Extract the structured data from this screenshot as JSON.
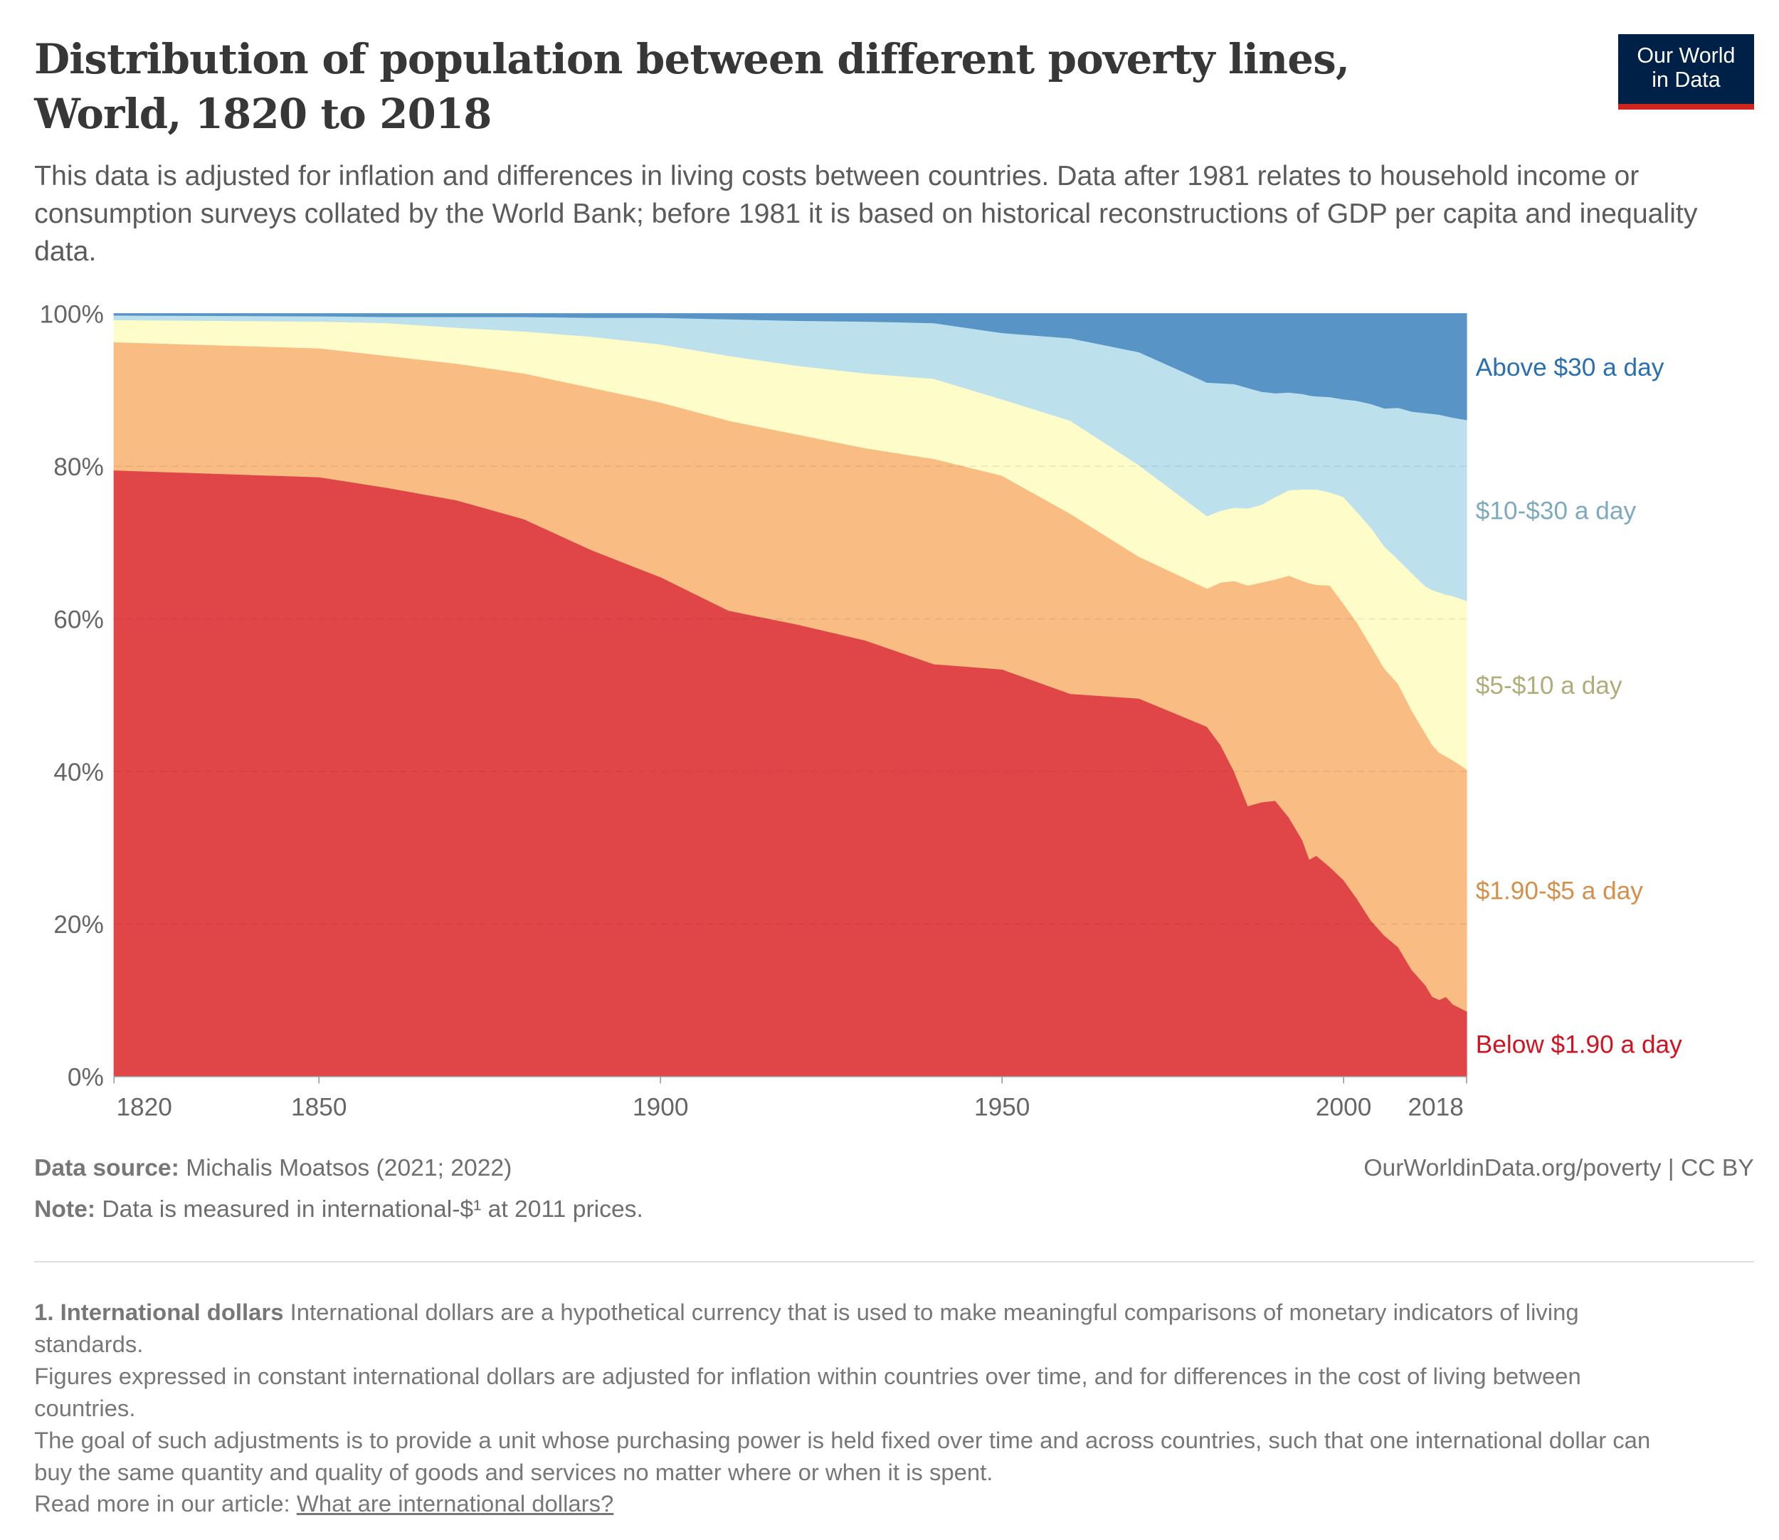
{
  "header": {
    "title": "Distribution of population between different poverty lines, World, 1820 to 2018",
    "subtitle": "This data is adjusted for inflation and differences in living costs between countries. Data after 1981 relates to household income or consumption surveys collated by the World Bank; before 1981 it is based on historical reconstructions of GDP per capita and inequality data.",
    "logo_line1": "Our World",
    "logo_line2": "in Data"
  },
  "chart_data": {
    "type": "area",
    "stacked": true,
    "title": "Distribution of population between different poverty lines, World, 1820 to 2018",
    "xlim": [
      1820,
      2018
    ],
    "ylim": [
      0,
      100
    ],
    "y_unit": "%",
    "grid": "horizontal dashed",
    "legend_placement": "right (inline labels)",
    "x_ticks": [
      "1820",
      "1850",
      "1900",
      "1950",
      "2000",
      "2018"
    ],
    "y_ticks": [
      "0%",
      "20%",
      "40%",
      "60%",
      "80%",
      "100%"
    ],
    "x": [
      1820,
      1850,
      1860,
      1870,
      1880,
      1890,
      1900,
      1910,
      1920,
      1930,
      1940,
      1950,
      1960,
      1970,
      1980,
      1982,
      1984,
      1986,
      1988,
      1990,
      1992,
      1994,
      1995,
      1996,
      1998,
      2000,
      2002,
      2004,
      2006,
      2008,
      2010,
      2012,
      2013,
      2014,
      2015,
      2016,
      2018
    ],
    "series": [
      {
        "name": "Below $1.90 a day",
        "color": "#e04647",
        "label_color": "#d6111f",
        "values": [
          79.5,
          78.6,
          77.2,
          75.6,
          73.1,
          69.0,
          65.5,
          61.1,
          59.3,
          57.2,
          54.1,
          53.4,
          50.2,
          49.6,
          45.9,
          43.5,
          40.0,
          35.5,
          36.0,
          36.2,
          34.0,
          31.0,
          28.5,
          29.0,
          27.5,
          25.8,
          23.3,
          20.5,
          18.5,
          17.0,
          14.0,
          12.0,
          10.5,
          10.1,
          10.5,
          9.5,
          8.6
        ]
      },
      {
        "name": "$1.90-$5 a day",
        "color": "#f9bd83",
        "label_color": "#d4904a",
        "values": [
          16.8,
          16.9,
          17.3,
          17.9,
          19.1,
          21.3,
          22.9,
          24.9,
          24.9,
          25.2,
          26.9,
          25.4,
          23.6,
          18.6,
          18.1,
          21.3,
          25.0,
          28.9,
          28.8,
          29.0,
          31.7,
          34.0,
          36.2,
          35.5,
          36.9,
          36.2,
          36.2,
          36.0,
          35.0,
          34.5,
          34.0,
          33.0,
          33.0,
          32.4,
          31.5,
          32.0,
          31.7
        ]
      },
      {
        "name": "$5-$10 a day",
        "color": "#fefdca",
        "label_color": "#b0ad7a",
        "values": [
          2.9,
          3.5,
          4.3,
          4.7,
          5.5,
          6.7,
          7.6,
          8.5,
          9.0,
          9.8,
          10.5,
          10.0,
          12.2,
          12.0,
          9.5,
          9.4,
          9.6,
          10.1,
          10.2,
          10.8,
          11.2,
          12.0,
          12.3,
          12.5,
          12.2,
          14.0,
          14.5,
          15.5,
          16.0,
          16.3,
          18.0,
          19.3,
          20.3,
          21.0,
          21.2,
          21.5,
          22.1
        ]
      },
      {
        "name": "$10-$30 a day",
        "color": "#bde1ec",
        "label_color": "#7eaabf",
        "values": [
          0.6,
          0.7,
          0.8,
          1.4,
          1.9,
          2.5,
          3.5,
          4.8,
          5.9,
          6.8,
          7.3,
          8.7,
          10.8,
          14.8,
          17.5,
          16.7,
          16.2,
          15.8,
          14.8,
          13.6,
          12.8,
          12.5,
          12.3,
          12.2,
          12.5,
          12.8,
          14.6,
          16.2,
          18.1,
          19.9,
          21.2,
          22.7,
          23.1,
          23.3,
          23.4,
          23.4,
          23.7
        ]
      },
      {
        "name": "Above $30 a day",
        "color": "#5894c5",
        "label_color": "#2a6fb0",
        "values": [
          0.2,
          0.3,
          0.4,
          0.4,
          0.4,
          0.5,
          0.5,
          0.7,
          0.9,
          1.0,
          1.2,
          2.5,
          3.2,
          5.0,
          9.0,
          9.1,
          9.2,
          9.7,
          10.2,
          10.4,
          10.3,
          10.5,
          10.7,
          10.8,
          10.9,
          11.2,
          11.4,
          11.8,
          12.4,
          12.3,
          12.8,
          13.0,
          13.1,
          13.2,
          13.4,
          13.6,
          13.9
        ]
      }
    ]
  },
  "footer": {
    "source_label": "Data source:",
    "source_text": "Michalis Moatsos (2021; 2022)",
    "note_label": "Note:",
    "note_text": "Data is measured in international-$¹ at 2011 prices.",
    "credit": "OurWorldinData.org/poverty | CC BY"
  },
  "footnotes": {
    "heading": "1. International dollars",
    "p1": "International dollars are a hypothetical currency that is used to make meaningful comparisons of monetary indicators of living standards.",
    "p2": "Figures expressed in constant international dollars are adjusted for inflation within countries over time, and for differences in the cost of living between countries.",
    "p3": "The goal of such adjustments is to provide a unit whose purchasing power is held fixed over time and across countries, such that one international dollar can buy the same quantity and quality of goods and services no matter where or when it is spent.",
    "read_more": "Read more in our article:",
    "link": "What are international dollars?"
  }
}
